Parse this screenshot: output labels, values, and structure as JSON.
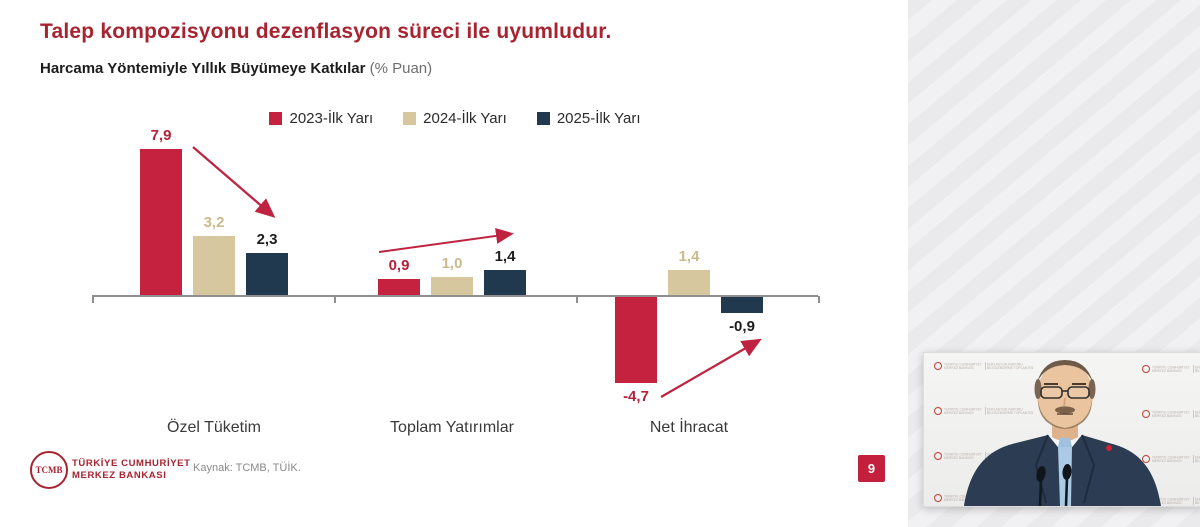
{
  "slide": {
    "title": "Talep kompozisyonu dezenflasyon süreci ile uyumludur.",
    "subtitle": "Harcama Yöntemiyle Yıllık Büyümeye Katkılar",
    "subtitle_unit": "(% Puan)",
    "source": "Kaynak: TCMB, TÜİK.",
    "page_number": "9",
    "logo": {
      "monogram": "TCMB",
      "org_line1": "TÜRKİYE CUMHURİYET",
      "org_line2": "MERKEZ BANKASI"
    }
  },
  "chart_data": {
    "type": "bar",
    "title": "Harcama Yöntemiyle Yıllık Büyümeye Katkılar (% Puan)",
    "categories": [
      "Özel Tüketim",
      "Toplam Yatırımlar",
      "Net İhracat"
    ],
    "series": [
      {
        "name": "2023-İlk Yarı",
        "color": "#c5223f",
        "label_color": "#b5203a",
        "values": [
          7.9,
          0.9,
          -4.7
        ],
        "labels": [
          "7,9",
          "0,9",
          "-4,7"
        ]
      },
      {
        "name": "2024-İlk Yarı",
        "color": "#d6c79e",
        "label_color": "#ccba8c",
        "values": [
          3.2,
          1.0,
          1.4
        ],
        "labels": [
          "3,2",
          "1,0",
          "1,4"
        ]
      },
      {
        "name": "2025-İlk Yarı",
        "color": "#20394f",
        "label_color": "#1c1c1c",
        "values": [
          2.3,
          1.4,
          -0.9
        ],
        "labels": [
          "2,3",
          "1,4",
          "-0,9"
        ]
      }
    ],
    "ylim": [
      -5.5,
      9.5
    ],
    "grid": false,
    "legend_position": "top",
    "annotations": [
      "downward trend arrow over Özel Tüketim group",
      "upward trend arrow over Toplam Yatırımlar group",
      "upward trend arrow over Net İhracat group"
    ],
    "accent_color": "#bf2340"
  },
  "video": {
    "backdrop_org_line1": "TÜRKİYE CUMHURİYET",
    "backdrop_org_line2": "MERKEZ BANKASI",
    "backdrop_event_line1": "ENFLASYON RAPORU",
    "backdrop_event_line2": "BİLGİLENDİRME TOPLANTISI"
  }
}
